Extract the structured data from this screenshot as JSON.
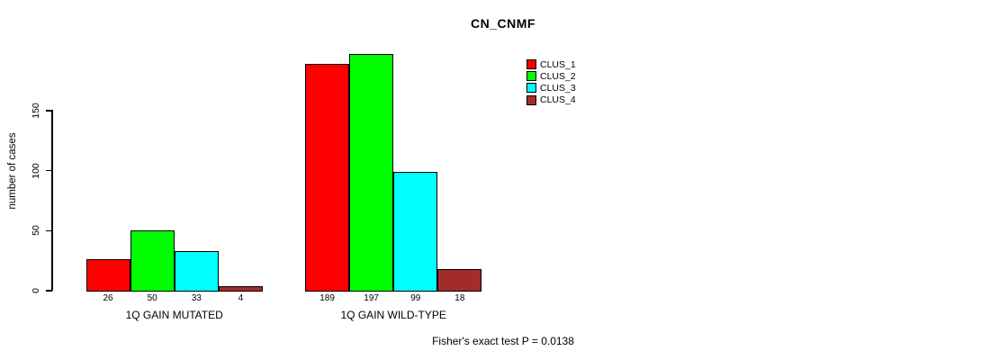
{
  "chart_data": {
    "type": "bar",
    "title": "CN_CNMF",
    "ylabel": "number of cases",
    "xlabel": "",
    "ylim": [
      0,
      200
    ],
    "yticks": [
      0,
      50,
      100,
      150
    ],
    "grid": false,
    "legend_position": "top-right",
    "categories": [
      "1Q GAIN MUTATED",
      "1Q GAIN WILD-TYPE"
    ],
    "series": [
      {
        "name": "CLUS_1",
        "color": "#FF0000",
        "values": [
          26,
          189
        ]
      },
      {
        "name": "CLUS_2",
        "color": "#00FF00",
        "values": [
          50,
          197
        ]
      },
      {
        "name": "CLUS_3",
        "color": "#00FFFF",
        "values": [
          33,
          99
        ]
      },
      {
        "name": "CLUS_4",
        "color": "#A52A2A",
        "values": [
          4,
          18
        ]
      }
    ],
    "bar_value_labels_shown": true,
    "annotation": "Fisher's exact test P = 0.0138",
    "background_color": "#FFFFFF",
    "axis_color": "#000000"
  }
}
